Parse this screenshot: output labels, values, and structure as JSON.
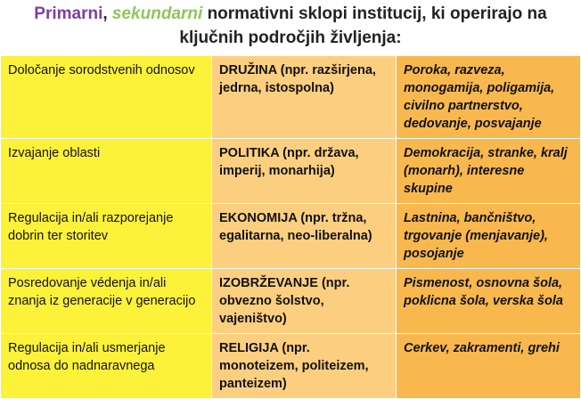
{
  "title": {
    "primary": "Primarni",
    "comma": ",",
    "secondary": "sekundarni",
    "rest": "normativni sklopi institucij, ki operirajo na ključnih področjih življenja:"
  },
  "table": {
    "rows": [
      {
        "area": "Določanje sorodstvenih odnosov",
        "institution": "DRUŽINA",
        "detail": "(npr. razširjena, jedrna, istospolna)",
        "examples": "Poroka, razveza, monogamija, poligamija, civilno partnerstvo, dedovanje, posvajanje"
      },
      {
        "area": "Izvajanje oblasti",
        "institution": "POLITIKA",
        "detail": "(npr. država, imperij, monarhija)",
        "examples": "Demokracija, stranke, kralj (monarh), interesne skupine"
      },
      {
        "area": "Regulacija in/ali razporejanje dobrin ter storitev",
        "institution": "EKONOMIJA",
        "detail": "(npr. tržna, egalitarna, neo-liberalna)",
        "examples": "Lastnina, bančništvo, trgovanje (menjavanje), posojanje"
      },
      {
        "area": "Posredovanje védenja in/ali znanja iz generacije v generacijo",
        "institution": "IZOBRŽEVANJE",
        "detail": "(npr. obvezno šolstvo, vajeništvo)",
        "examples": "Pismenost, osnovna šola, poklicna šola, verska šola"
      },
      {
        "area": "Regulacija in/ali usmerjanje odnosa do nadnaravnega",
        "institution": "RELIGIJA",
        "detail": "(npr. monoteizem, politeizem, panteizem)",
        "examples": "Cerkev, zakramenti, grehi"
      }
    ]
  }
}
